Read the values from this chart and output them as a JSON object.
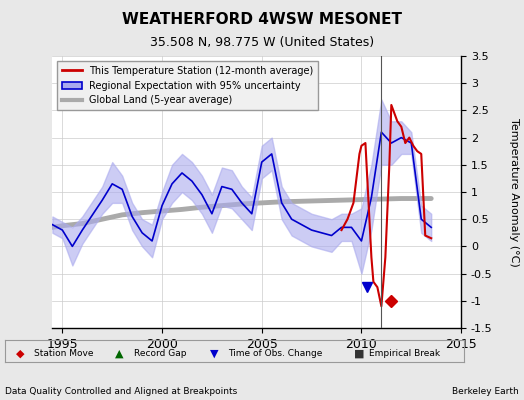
{
  "title": "WEATHERFORD 4WSW MESONET",
  "subtitle": "35.508 N, 98.775 W (United States)",
  "ylabel": "Temperature Anomaly (°C)",
  "xlabel_left": "Data Quality Controlled and Aligned at Breakpoints",
  "xlabel_right": "Berkeley Earth",
  "ylim": [
    -1.5,
    3.5
  ],
  "xlim": [
    1994.5,
    2015.0
  ],
  "bg_color": "#e8e8e8",
  "plot_bg_color": "#ffffff",
  "grid_color": "#cccccc",
  "station_move_x": 2011.5,
  "station_move_y": -1.0,
  "obs_change_x": 2010.3,
  "obs_change_y": -0.75,
  "vline_x": 2011.0,
  "global_land": {
    "x": [
      1994.5,
      1995,
      1996,
      1997,
      1998,
      1999,
      2000,
      2001,
      2002,
      2003,
      2004,
      2005,
      2006,
      2007,
      2008,
      2009,
      2010,
      2011,
      2012,
      2013,
      2013.5
    ],
    "y": [
      0.35,
      0.38,
      0.42,
      0.5,
      0.58,
      0.62,
      0.65,
      0.68,
      0.72,
      0.75,
      0.78,
      0.8,
      0.82,
      0.83,
      0.84,
      0.85,
      0.86,
      0.87,
      0.88,
      0.88,
      0.88
    ]
  },
  "regional_uncertainty_upper": {
    "x": [
      1994.5,
      1995,
      1995.5,
      1996,
      1997,
      1997.5,
      1998,
      1998.5,
      1999,
      1999.5,
      2000,
      2000.5,
      2001,
      2001.5,
      2002,
      2002.5,
      2003,
      2003.5,
      2004,
      2004.5,
      2005,
      2005.5,
      2006,
      2006.5,
      2007,
      2007.5,
      2008,
      2008.5,
      2009,
      2009.5,
      2010,
      2010.5,
      2011,
      2011.5,
      2012,
      2012.5,
      2013,
      2013.5
    ],
    "y": [
      0.55,
      0.45,
      0.35,
      0.55,
      1.1,
      1.55,
      1.3,
      0.8,
      0.5,
      0.4,
      1.0,
      1.5,
      1.7,
      1.55,
      1.3,
      0.95,
      1.45,
      1.4,
      1.1,
      0.9,
      1.85,
      2.0,
      1.1,
      0.8,
      0.7,
      0.6,
      0.55,
      0.5,
      0.6,
      0.6,
      0.7,
      1.5,
      2.7,
      2.3,
      2.3,
      2.1,
      0.75,
      0.6
    ]
  },
  "regional_uncertainty_lower": {
    "x": [
      1994.5,
      1995,
      1995.5,
      1996,
      1997,
      1997.5,
      1998,
      1998.5,
      1999,
      1999.5,
      2000,
      2000.5,
      2001,
      2001.5,
      2002,
      2002.5,
      2003,
      2003.5,
      2004,
      2004.5,
      2005,
      2005.5,
      2006,
      2006.5,
      2007,
      2007.5,
      2008,
      2008.5,
      2009,
      2009.5,
      2010,
      2010.5,
      2011,
      2011.5,
      2012,
      2012.5,
      2013,
      2013.5
    ],
    "y": [
      0.25,
      0.15,
      -0.35,
      0.05,
      0.6,
      0.8,
      0.8,
      0.3,
      0.0,
      -0.2,
      0.5,
      0.8,
      1.0,
      0.85,
      0.6,
      0.25,
      0.75,
      0.7,
      0.5,
      0.3,
      1.25,
      1.4,
      0.5,
      0.2,
      0.1,
      0.0,
      -0.05,
      -0.1,
      0.1,
      0.1,
      -0.5,
      0.3,
      1.5,
      1.5,
      1.7,
      1.7,
      0.25,
      0.1
    ]
  },
  "regional_line": {
    "x": [
      1994.5,
      1995,
      1995.5,
      1996,
      1997,
      1997.5,
      1998,
      1998.5,
      1999,
      1999.5,
      2000,
      2000.5,
      2001,
      2001.5,
      2002,
      2002.5,
      2003,
      2003.5,
      2004,
      2004.5,
      2005,
      2005.5,
      2006,
      2006.5,
      2007,
      2007.5,
      2008,
      2008.5,
      2009,
      2009.5,
      2010,
      2010.5,
      2011,
      2011.5,
      2012,
      2012.5,
      2013,
      2013.5
    ],
    "y": [
      0.4,
      0.3,
      0.0,
      0.3,
      0.85,
      1.15,
      1.05,
      0.55,
      0.25,
      0.1,
      0.75,
      1.15,
      1.35,
      1.2,
      0.95,
      0.6,
      1.1,
      1.05,
      0.8,
      0.6,
      1.55,
      1.7,
      0.8,
      0.5,
      0.4,
      0.3,
      0.25,
      0.2,
      0.35,
      0.35,
      0.1,
      0.9,
      2.1,
      1.9,
      2.0,
      1.9,
      0.5,
      0.35
    ]
  },
  "station_line": {
    "x": [
      2009.0,
      2009.3,
      2009.6,
      2009.9,
      2010.0,
      2010.2,
      2010.4,
      2010.5,
      2010.6,
      2010.8,
      2011.0,
      2011.2,
      2011.4,
      2011.5,
      2011.6,
      2011.8,
      2012.0,
      2012.2,
      2012.4,
      2012.6,
      2012.8,
      2013.0,
      2013.2,
      2013.5
    ],
    "y": [
      0.3,
      0.5,
      0.8,
      1.7,
      1.85,
      1.9,
      0.5,
      -0.2,
      -0.65,
      -0.75,
      -1.1,
      -0.2,
      1.5,
      2.6,
      2.5,
      2.3,
      2.2,
      1.9,
      2.0,
      1.85,
      1.75,
      1.7,
      0.2,
      0.15
    ]
  },
  "legend_line_color_station": "#cc0000",
  "legend_line_color_regional": "#0000cc",
  "legend_fill_color_regional": "#aaaaee",
  "legend_line_color_global": "#aaaaaa",
  "bottom_legend": {
    "station_move_color": "#cc0000",
    "record_gap_color": "#006600",
    "obs_change_color": "#0000cc",
    "empirical_break_color": "#333333"
  }
}
